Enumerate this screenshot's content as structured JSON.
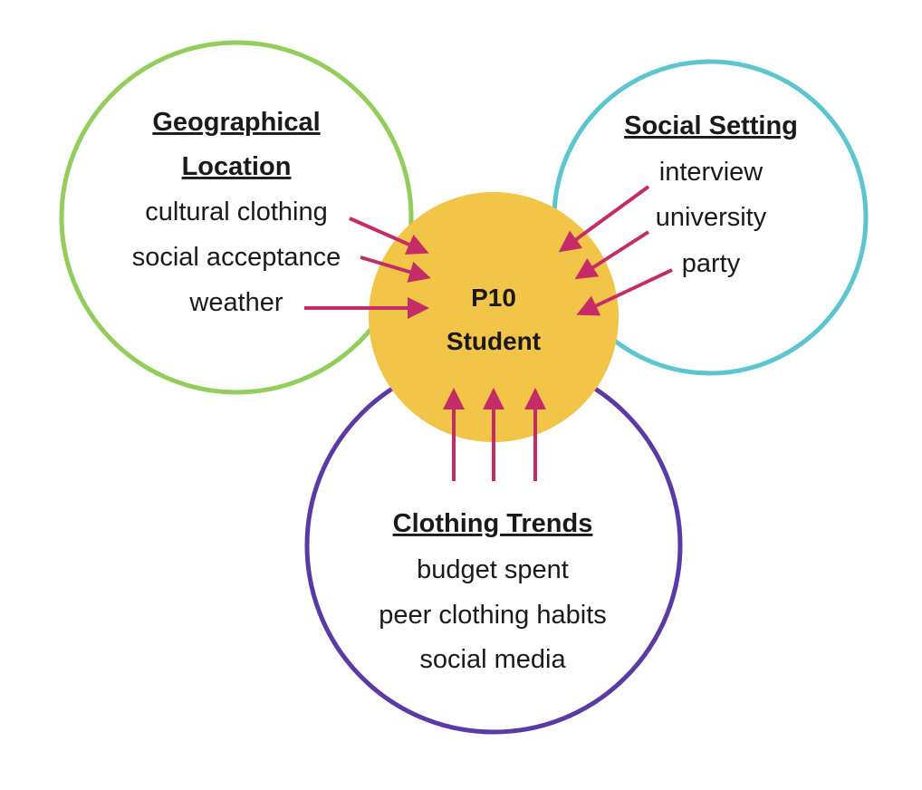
{
  "colors": {
    "geographical_ring": "#93cd5b",
    "social_ring": "#5bc6cf",
    "clothing_ring": "#5b3aa6",
    "center_fill": "#f2c447",
    "arrow": "#c42b67",
    "text": "#1a1a1a"
  },
  "center": {
    "line1": "P10",
    "line2": "Student"
  },
  "geographical": {
    "heading_line1": "Geographical",
    "heading_line2": "Location",
    "items": [
      "cultural clothing",
      "social acceptance",
      "weather"
    ]
  },
  "social": {
    "heading": "Social Setting",
    "items": [
      "interview",
      "university",
      "party"
    ]
  },
  "clothing": {
    "heading": "Clothing Trends",
    "items": [
      "budget spent",
      "peer clothing habits",
      "social media"
    ]
  }
}
